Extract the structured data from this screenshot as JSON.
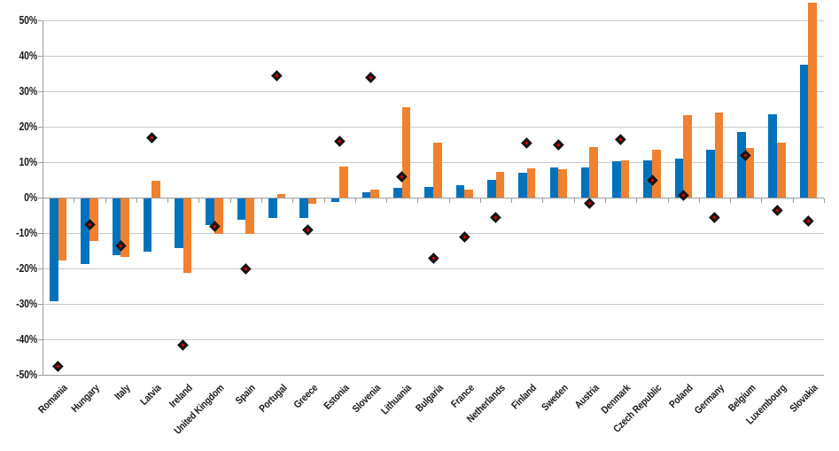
{
  "chart_data": {
    "type": "bar",
    "subtype": "grouped bars with diamond scatter markers",
    "title": "",
    "xlabel": "",
    "ylabel": "",
    "ylim": [
      -50,
      50
    ],
    "ytick_step": 10,
    "ytick_labels": [
      "50%",
      "40%",
      "30%",
      "20%",
      "10%",
      "0%",
      "-10%",
      "-20%",
      "-30%",
      "-40%",
      "-50%"
    ],
    "grid": true,
    "legend": "none",
    "categories": [
      "Romania",
      "Hungary",
      "Italy",
      "Latvia",
      "Ireland",
      "United Kingdom",
      "Spain",
      "Portugal",
      "Greece",
      "Estonia",
      "Slovenia",
      "Lithuania",
      "Bulgaria",
      "France",
      "Netherlands",
      "Finland",
      "Sweden",
      "Austria",
      "Denmark",
      "Czech Republic",
      "Poland",
      "Germany",
      "Belgium",
      "Luxembourg",
      "Slovakia"
    ],
    "series": [
      {
        "name": "blue_bars",
        "color": "#0072bc",
        "values": [
          -29,
          -18.5,
          -16,
          -15,
          -14,
          -7.5,
          -6,
          -5.5,
          -5.5,
          -1,
          1.5,
          2.8,
          3,
          3.5,
          5,
          7,
          8.4,
          8.5,
          10.3,
          10.6,
          11,
          13.4,
          18.4,
          23.6,
          37.5
        ]
      },
      {
        "name": "orange_bars",
        "color": "#f0812f",
        "values": [
          -17.5,
          -12,
          -16.5,
          4.8,
          -21,
          -10,
          -10,
          1,
          -1.5,
          8.8,
          2.3,
          25.5,
          15.5,
          2.3,
          7.3,
          8.3,
          8,
          14.2,
          10.4,
          13.6,
          23.2,
          24,
          14,
          15.4,
          55
        ]
      },
      {
        "name": "diamond_markers",
        "marker": "diamond",
        "color": "#e60000",
        "outline_color": "#141414",
        "values": [
          -47.5,
          -7.5,
          -13.5,
          16.8,
          -41.5,
          -8,
          -20,
          34.5,
          -9,
          16,
          33.8,
          5.8,
          -17,
          -11,
          -5.5,
          15.5,
          15,
          -1.5,
          16.5,
          4.8,
          0.7,
          -5.5,
          11.8,
          -3.5,
          -6.5
        ]
      }
    ],
    "notes": "No chart title or legend visible. Slovakia orange bar exceeds the 50% axis maximum and is clipped at the top of the plot. Gridline color light gray, axis lines gray, tick labels dark condensed sans."
  },
  "colors": {
    "bar_blue": "#0072bc",
    "bar_orange": "#f0812f",
    "diamond_fill": "#e60000",
    "diamond_outline": "#141414",
    "gridline": "#c9c9c9",
    "axis": "#9b9b9b",
    "text": "#1a1a1a",
    "background": "#ffffff"
  }
}
